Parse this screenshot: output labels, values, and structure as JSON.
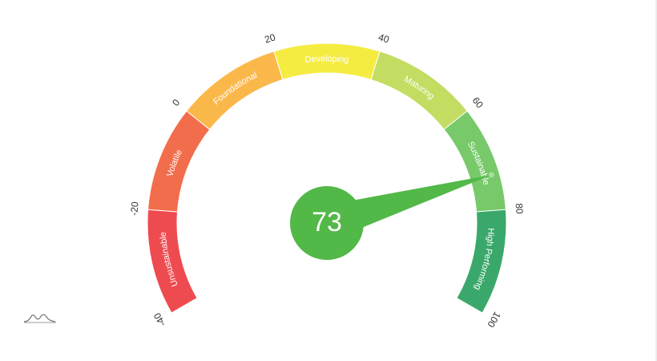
{
  "chart_data": {
    "type": "gauge",
    "min": -40,
    "max": 100,
    "value": 73,
    "value_label": "73",
    "bands": [
      {
        "label": "Unsustainable",
        "from": -40,
        "to": -20,
        "color": "#ee4b50"
      },
      {
        "label": "Volatile",
        "from": -20,
        "to": 0,
        "color": "#f26d4b"
      },
      {
        "label": "Foundational",
        "from": 0,
        "to": 20,
        "color": "#fbb84a"
      },
      {
        "label": "Developing",
        "from": 20,
        "to": 40,
        "color": "#f5ec42"
      },
      {
        "label": "Maturing",
        "from": 40,
        "to": 60,
        "color": "#c2dd62"
      },
      {
        "label": "Sustainable",
        "from": 60,
        "to": 80,
        "color": "#77c96a"
      },
      {
        "label": "High Performing",
        "from": 80,
        "to": 100,
        "color": "#3aa86b"
      }
    ],
    "ticks": [
      {
        "value": -40,
        "label": "-40"
      },
      {
        "value": -20,
        "label": "-20"
      },
      {
        "value": 0,
        "label": "0"
      },
      {
        "value": 20,
        "label": "20"
      },
      {
        "value": 40,
        "label": "40"
      },
      {
        "value": 60,
        "label": "60"
      },
      {
        "value": 80,
        "label": "80"
      },
      {
        "value": 100,
        "label": "100"
      }
    ],
    "needle_color": "#52b848",
    "highlight_color": "#a6de9a"
  },
  "logo": {
    "icon": "amcharts-logo-icon"
  }
}
